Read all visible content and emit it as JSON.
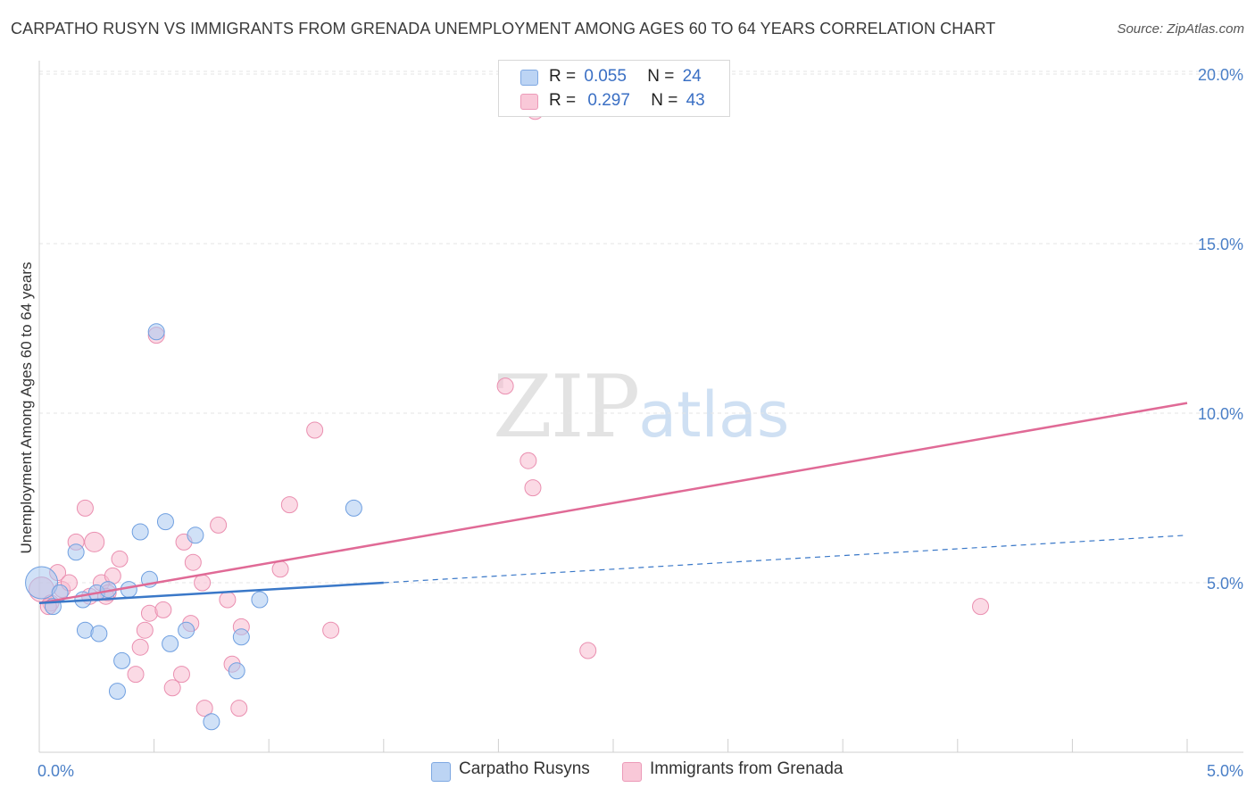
{
  "title": "CARPATHO RUSYN VS IMMIGRANTS FROM GRENADA UNEMPLOYMENT AMONG AGES 60 TO 64 YEARS CORRELATION CHART",
  "source": "Source: ZipAtlas.com",
  "watermark": {
    "zip": "ZIP",
    "atlas": "atlas"
  },
  "legend_top": {
    "rows": [
      {
        "r_label": "R =",
        "r_value": "0.055",
        "n_label": "N =",
        "n_value": "24"
      },
      {
        "r_label": "R =",
        "r_value": "0.297",
        "n_label": "N =",
        "n_value": "43"
      }
    ]
  },
  "legend_bottom": {
    "series1": "Carpatho Rusyns",
    "series2": "Immigrants from Grenada"
  },
  "colors": {
    "blue_fill": "#a9c8f0",
    "blue_stroke": "#6f9fe0",
    "blue_line": "#3a78c8",
    "pink_fill": "#f7bcd0",
    "pink_stroke": "#ea8fb0",
    "pink_line": "#e06a96",
    "tick": "#4a7fc7"
  },
  "chart_data": {
    "type": "scatter",
    "title": "CARPATHO RUSYN VS IMMIGRANTS FROM GRENADA UNEMPLOYMENT AMONG AGES 60 TO 64 YEARS CORRELATION CHART",
    "xlabel": "",
    "ylabel": "Unemployment Among Ages 60 to 64 years",
    "xlim": [
      0,
      5
    ],
    "ylim": [
      0,
      20.5
    ],
    "x_tick_labels": [
      "0.0%",
      "5.0%"
    ],
    "y_ticks": [
      5,
      10,
      15,
      20
    ],
    "y_tick_labels": [
      "5.0%",
      "10.0%",
      "15.0%",
      "20.0%"
    ],
    "series": [
      {
        "name": "Carpatho Rusyns",
        "r": 0.055,
        "n": 24,
        "trend": {
          "x0": 0,
          "y0": 4.4,
          "x1": 1.5,
          "y1": 5.0,
          "dash_to_x": 5.0,
          "dash_to_y": 6.4
        },
        "points": [
          {
            "x": 0.01,
            "y": 5.0,
            "s": 18
          },
          {
            "x": 0.06,
            "y": 4.3,
            "s": 9
          },
          {
            "x": 0.09,
            "y": 4.7,
            "s": 9
          },
          {
            "x": 0.16,
            "y": 5.9,
            "s": 9
          },
          {
            "x": 0.2,
            "y": 3.6,
            "s": 9
          },
          {
            "x": 0.19,
            "y": 4.5,
            "s": 9
          },
          {
            "x": 0.25,
            "y": 4.7,
            "s": 9
          },
          {
            "x": 0.26,
            "y": 3.5,
            "s": 9
          },
          {
            "x": 0.3,
            "y": 4.8,
            "s": 9
          },
          {
            "x": 0.34,
            "y": 1.8,
            "s": 9
          },
          {
            "x": 0.36,
            "y": 2.7,
            "s": 9
          },
          {
            "x": 0.39,
            "y": 4.8,
            "s": 9
          },
          {
            "x": 0.44,
            "y": 6.5,
            "s": 9
          },
          {
            "x": 0.48,
            "y": 5.1,
            "s": 9
          },
          {
            "x": 0.51,
            "y": 12.4,
            "s": 9
          },
          {
            "x": 0.55,
            "y": 6.8,
            "s": 9
          },
          {
            "x": 0.57,
            "y": 3.2,
            "s": 9
          },
          {
            "x": 0.64,
            "y": 3.6,
            "s": 9
          },
          {
            "x": 0.68,
            "y": 6.4,
            "s": 9
          },
          {
            "x": 0.75,
            "y": 0.9,
            "s": 9
          },
          {
            "x": 0.86,
            "y": 2.4,
            "s": 9
          },
          {
            "x": 0.88,
            "y": 3.4,
            "s": 9
          },
          {
            "x": 0.96,
            "y": 4.5,
            "s": 9
          },
          {
            "x": 1.37,
            "y": 7.2,
            "s": 9
          }
        ]
      },
      {
        "name": "Immigrants from Grenada",
        "r": 0.297,
        "n": 43,
        "trend": {
          "x0": 0,
          "y0": 4.4,
          "x1": 5.0,
          "y1": 10.3
        },
        "points": [
          {
            "x": 0.01,
            "y": 4.8,
            "s": 14
          },
          {
            "x": 0.05,
            "y": 4.4,
            "s": 9
          },
          {
            "x": 0.08,
            "y": 5.3,
            "s": 9
          },
          {
            "x": 0.1,
            "y": 4.8,
            "s": 9
          },
          {
            "x": 0.13,
            "y": 5.0,
            "s": 9
          },
          {
            "x": 0.16,
            "y": 6.2,
            "s": 9
          },
          {
            "x": 0.2,
            "y": 7.2,
            "s": 9
          },
          {
            "x": 0.24,
            "y": 6.2,
            "s": 11
          },
          {
            "x": 0.27,
            "y": 5.0,
            "s": 9
          },
          {
            "x": 0.3,
            "y": 4.7,
            "s": 9
          },
          {
            "x": 0.32,
            "y": 5.2,
            "s": 9
          },
          {
            "x": 0.35,
            "y": 5.7,
            "s": 9
          },
          {
            "x": 0.42,
            "y": 2.3,
            "s": 9
          },
          {
            "x": 0.44,
            "y": 3.1,
            "s": 9
          },
          {
            "x": 0.46,
            "y": 3.6,
            "s": 9
          },
          {
            "x": 0.48,
            "y": 4.1,
            "s": 9
          },
          {
            "x": 0.51,
            "y": 12.3,
            "s": 9
          },
          {
            "x": 0.54,
            "y": 4.2,
            "s": 9
          },
          {
            "x": 0.58,
            "y": 1.9,
            "s": 9
          },
          {
            "x": 0.62,
            "y": 2.3,
            "s": 9
          },
          {
            "x": 0.63,
            "y": 6.2,
            "s": 9
          },
          {
            "x": 0.66,
            "y": 3.8,
            "s": 9
          },
          {
            "x": 0.67,
            "y": 5.6,
            "s": 9
          },
          {
            "x": 0.71,
            "y": 5.0,
            "s": 9
          },
          {
            "x": 0.72,
            "y": 1.3,
            "s": 9
          },
          {
            "x": 0.78,
            "y": 6.7,
            "s": 9
          },
          {
            "x": 0.82,
            "y": 4.5,
            "s": 9
          },
          {
            "x": 0.84,
            "y": 2.6,
            "s": 9
          },
          {
            "x": 0.87,
            "y": 1.3,
            "s": 9
          },
          {
            "x": 0.88,
            "y": 3.7,
            "s": 9
          },
          {
            "x": 1.05,
            "y": 5.4,
            "s": 9
          },
          {
            "x": 1.09,
            "y": 7.3,
            "s": 9
          },
          {
            "x": 1.2,
            "y": 9.5,
            "s": 9
          },
          {
            "x": 1.27,
            "y": 3.6,
            "s": 9
          },
          {
            "x": 2.03,
            "y": 10.8,
            "s": 9
          },
          {
            "x": 2.13,
            "y": 8.6,
            "s": 9
          },
          {
            "x": 2.15,
            "y": 7.8,
            "s": 9
          },
          {
            "x": 2.16,
            "y": 18.9,
            "s": 9
          },
          {
            "x": 2.39,
            "y": 3.0,
            "s": 9
          },
          {
            "x": 4.1,
            "y": 4.3,
            "s": 9
          },
          {
            "x": 0.04,
            "y": 4.3,
            "s": 9
          },
          {
            "x": 0.29,
            "y": 4.6,
            "s": 9
          },
          {
            "x": 0.22,
            "y": 4.6,
            "s": 9
          }
        ]
      }
    ]
  }
}
